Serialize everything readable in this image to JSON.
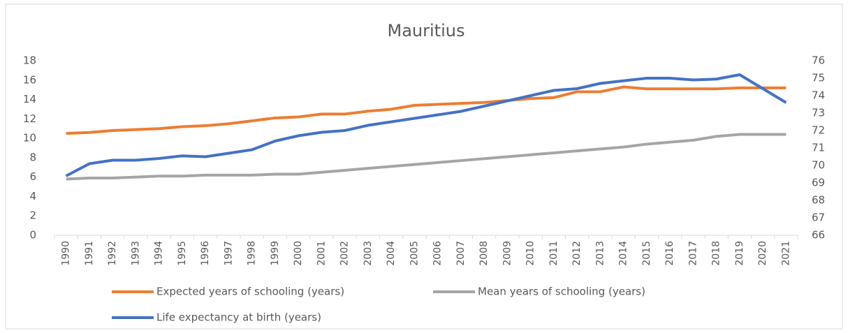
{
  "chart_data": {
    "type": "line",
    "title": "Mauritius",
    "categories": [
      "1990",
      "1991",
      "1992",
      "1993",
      "1994",
      "1995",
      "1996",
      "1997",
      "1998",
      "1999",
      "2000",
      "2001",
      "2002",
      "2003",
      "2004",
      "2005",
      "2006",
      "2007",
      "2008",
      "2009",
      "2010",
      "2011",
      "2012",
      "2013",
      "2014",
      "2015",
      "2016",
      "2017",
      "2018",
      "2019",
      "2020",
      "2021"
    ],
    "series": [
      {
        "name": "Expected years of schooling (years)",
        "color": "#ed7d31",
        "values": [
          10.5,
          10.6,
          10.8,
          10.9,
          11.0,
          11.2,
          11.3,
          11.5,
          11.8,
          12.1,
          12.2,
          12.5,
          12.5,
          12.8,
          13.0,
          13.4,
          13.5,
          13.6,
          13.7,
          13.9,
          14.1,
          14.2,
          14.8,
          14.8,
          15.3,
          15.1,
          15.1,
          15.1,
          15.1,
          15.2,
          15.2,
          15.2
        ]
      },
      {
        "name": "Mean years of schooling (years)",
        "color": "#a5a5a5",
        "values": [
          5.8,
          5.9,
          5.9,
          6.0,
          6.1,
          6.1,
          6.2,
          6.2,
          6.2,
          6.3,
          6.3,
          6.5,
          6.7,
          6.9,
          7.1,
          7.3,
          7.5,
          7.7,
          7.9,
          8.1,
          8.3,
          8.5,
          8.7,
          8.9,
          9.1,
          9.4,
          9.6,
          9.8,
          10.2,
          10.4,
          10.4,
          10.4
        ]
      },
      {
        "name": "Life expectancy at birth (years)",
        "color": "#4472c4",
        "axis": "y2",
        "values": [
          69.4,
          70.1,
          70.3,
          70.3,
          70.4,
          70.55,
          70.5,
          70.7,
          70.9,
          71.4,
          71.7,
          71.9,
          72.0,
          72.3,
          72.5,
          72.7,
          72.9,
          73.1,
          73.4,
          73.7,
          74.0,
          74.3,
          74.4,
          74.7,
          74.85,
          75.0,
          75.0,
          74.9,
          74.95,
          75.2,
          74.4,
          73.6
        ]
      }
    ],
    "ylim": [
      0,
      18
    ],
    "yticks": [
      0,
      2,
      4,
      6,
      8,
      10,
      12,
      14,
      16,
      18
    ],
    "y2lim": [
      66,
      76
    ],
    "y2ticks": [
      66,
      67,
      68,
      69,
      70,
      71,
      72,
      73,
      74,
      75,
      76
    ],
    "grid": false,
    "legend": "bottom"
  }
}
